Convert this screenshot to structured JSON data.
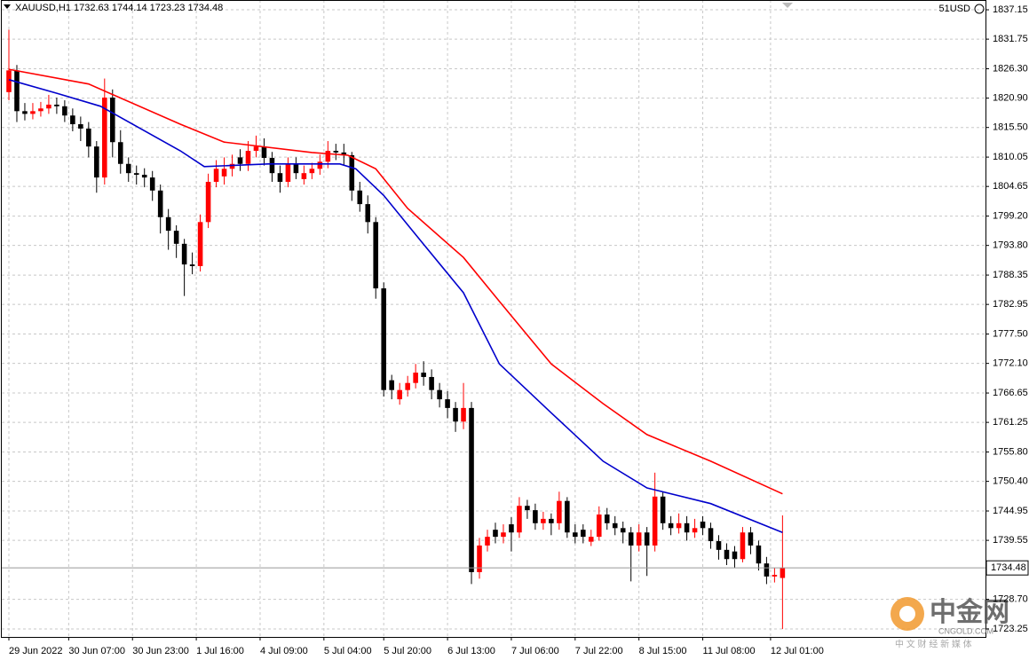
{
  "chart_data": {
    "type": "candlestick",
    "title": "XAUUSD,H1  1732.63 1744.14 1723.23 1734.48",
    "corner_label": "51USD",
    "x": [
      0,
      2,
      4,
      6,
      8,
      10,
      12,
      14,
      16,
      18,
      20,
      22,
      24,
      26,
      28,
      30,
      32,
      34,
      36,
      38,
      40,
      42,
      44,
      46,
      48,
      50,
      52,
      54,
      56,
      58,
      60,
      62,
      64,
      66,
      68,
      70,
      72,
      74,
      76,
      78,
      80,
      82,
      84,
      86,
      88,
      90,
      92,
      94,
      96,
      98,
      100,
      102,
      104,
      106,
      108,
      110,
      112,
      114,
      116,
      118,
      120,
      122,
      124,
      126,
      128,
      130,
      132,
      134,
      136,
      138,
      140,
      142,
      144,
      146,
      148,
      150,
      152,
      154,
      156,
      158,
      160,
      162,
      164,
      166,
      168,
      170,
      172,
      174,
      176,
      178,
      180,
      182,
      184,
      186,
      188,
      190,
      192,
      194
    ],
    "open": [
      1822,
      1826,
      1818.5,
      1818,
      1818.5,
      1819,
      1819.7,
      1819.4,
      1817.7,
      1816.1,
      1815.3,
      1812,
      1806.3,
      1821,
      1812.8,
      1808.8,
      1807.1,
      1806.8,
      1806.3,
      1803.9,
      1799,
      1796.5,
      1794.1,
      1790.3,
      1790,
      1798.1,
      1805.5,
      1806.5,
      1807.9,
      1810,
      1808.8,
      1811.2,
      1812,
      1809.9,
      1807.1,
      1805.5,
      1808.8,
      1806,
      1807.1,
      1807.9,
      1809.2,
      1811.2,
      1810.9,
      1810.4,
      1803.9,
      1801.4,
      1798.1,
      1785.9,
      1769,
      1765.5,
      1767.2,
      1768.5,
      1770.4,
      1769.6,
      1767.2,
      1765.5,
      1763.9,
      1761.4,
      1763.9,
      1733.7,
      1738.6,
      1741.5,
      1740.2,
      1742.5,
      1741.0,
      1745.9,
      1745.1,
      1742.7,
      1743.5,
      1742.7,
      1746.8,
      1741.0,
      1741.5,
      1739.3,
      1740.2,
      1744.3,
      1742.7,
      1741.8,
      1741.0,
      1738.6,
      1741.0,
      1738.6,
      1747.6,
      1742.7,
      1741.8,
      1742.7,
      1741.0,
      1743,
      1741.8,
      1739.4,
      1737.8,
      1737.5,
      1736.1,
      1741.0,
      1738.6,
      1735.3,
      1732.9,
      1732.63
    ],
    "high": [
      1833.5,
      1827,
      1820,
      1820,
      1820.2,
      1821.5,
      1821,
      1820.5,
      1819,
      1817.5,
      1816.5,
      1813,
      1824.5,
      1822.5,
      1815,
      1810,
      1808.5,
      1808,
      1807.5,
      1805,
      1800.5,
      1797.5,
      1795,
      1792.5,
      1799.5,
      1807,
      1809.5,
      1810,
      1810.5,
      1811.5,
      1813,
      1814,
      1813.5,
      1811,
      1808.5,
      1810,
      1810,
      1808.5,
      1809,
      1810.5,
      1813,
      1812.5,
      1812.5,
      1811,
      1805.5,
      1803,
      1799,
      1787,
      1770,
      1768.5,
      1769.8,
      1772,
      1772.5,
      1771,
      1768.5,
      1767,
      1765,
      1768.5,
      1765,
      1740,
      1741.5,
      1742.8,
      1742.5,
      1743.8,
      1747.5,
      1747,
      1746.3,
      1744.8,
      1744.5,
      1748.5,
      1747.5,
      1742.5,
      1742.5,
      1741.5,
      1745.8,
      1745.5,
      1744,
      1743,
      1742,
      1742.5,
      1742,
      1752,
      1748.5,
      1744,
      1744.5,
      1744,
      1743.5,
      1744,
      1742.8,
      1740.5,
      1739,
      1738.5,
      1742,
      1742,
      1739.5,
      1736.5,
      1734.5,
      1744.14
    ],
    "low": [
      1820.5,
      1816.5,
      1816.8,
      1817,
      1817.5,
      1818,
      1818,
      1816.5,
      1814.8,
      1813,
      1810,
      1803.5,
      1805,
      1810,
      1807,
      1805.5,
      1805,
      1804.5,
      1802,
      1796,
      1793,
      1791.5,
      1784.5,
      1788.5,
      1789,
      1797,
      1804.5,
      1805,
      1806.5,
      1807.5,
      1807.5,
      1810,
      1808.5,
      1805.5,
      1803.5,
      1804.5,
      1806,
      1805,
      1806,
      1806.8,
      1808,
      1809.5,
      1808.5,
      1802,
      1800,
      1796,
      1784,
      1766,
      1765.5,
      1764.5,
      1766,
      1767.5,
      1768,
      1765.5,
      1764,
      1762,
      1759.5,
      1760,
      1731.5,
      1732.5,
      1737.5,
      1739,
      1739,
      1737.5,
      1740,
      1743.5,
      1741.5,
      1741.5,
      1740.5,
      1741.5,
      1740,
      1739,
      1739,
      1738.5,
      1739.5,
      1741.5,
      1740.5,
      1739,
      1732,
      1737.5,
      1733,
      1737.5,
      1741.5,
      1740.5,
      1740.8,
      1739.5,
      1740,
      1740.5,
      1738,
      1736,
      1735,
      1734.5,
      1735.5,
      1737,
      1734,
      1731.5,
      1731.8,
      1723.23
    ],
    "close": [
      1826,
      1818.5,
      1818,
      1818.5,
      1819,
      1819.7,
      1819.4,
      1817.7,
      1816.1,
      1815.3,
      1812,
      1806.3,
      1821,
      1812.8,
      1808.8,
      1807.1,
      1806.8,
      1806.3,
      1803.9,
      1799,
      1796.5,
      1794.1,
      1790.3,
      1790,
      1798.1,
      1805.5,
      1807.9,
      1807.9,
      1808.8,
      1808.8,
      1811.2,
      1812,
      1809.9,
      1807.1,
      1805.5,
      1808.8,
      1807.1,
      1807.1,
      1807.9,
      1809.2,
      1811.2,
      1810.9,
      1810.4,
      1803.9,
      1801.4,
      1798.1,
      1785.9,
      1767.2,
      1767.2,
      1767.2,
      1768.5,
      1770.4,
      1769.6,
      1767.2,
      1765.5,
      1763.9,
      1761.4,
      1763.9,
      1733.7,
      1738.6,
      1740.2,
      1740.2,
      1741.0,
      1741.0,
      1745.9,
      1745.1,
      1742.7,
      1743.5,
      1742.7,
      1746.8,
      1741.0,
      1740.2,
      1740.2,
      1740.2,
      1744.3,
      1742.7,
      1741.8,
      1741.0,
      1738.6,
      1741.0,
      1738.6,
      1747.6,
      1742.7,
      1741.8,
      1742.7,
      1741.0,
      1741.8,
      1741.8,
      1739.4,
      1737.8,
      1736.1,
      1736.1,
      1741.0,
      1738.6,
      1735.3,
      1732.9,
      1733.2,
      1734.48
    ],
    "up_color": "#ff0000",
    "down_color": "#000000",
    "moving_averages": [
      {
        "color": "#ff0000",
        "x": [
          0,
          20,
          43,
          54,
          76,
          85,
          92,
          100,
          114,
          123,
          136,
          149,
          160,
          176,
          194
        ],
        "values": [
          1826.2,
          1823.5,
          1816.1,
          1812.8,
          1810.9,
          1810.4,
          1807.9,
          1800.6,
          1791.6,
          1783.5,
          1772.0,
          1764.7,
          1759.0,
          1754.1,
          1748.1
        ]
      },
      {
        "color": "#0000cc",
        "x": [
          0,
          12,
          23,
          43,
          49,
          65,
          83,
          87,
          94,
          103,
          114,
          123,
          136,
          149,
          160,
          176,
          194
        ],
        "values": [
          1824.3,
          1821.8,
          1819.4,
          1811.2,
          1808.3,
          1808.8,
          1808.8,
          1807.9,
          1803.0,
          1794.9,
          1785.1,
          1772.0,
          1763.0,
          1754.1,
          1749.2,
          1746.3,
          1741.0
        ]
      }
    ],
    "xlim": [
      -1.78,
      244.9
    ],
    "ylim": [
      1721.78,
      1838.95
    ],
    "xticks": [
      {
        "value": 0,
        "label": "29 Jun 2022"
      },
      {
        "value": 15,
        "label": "30 Jun 07:00"
      },
      {
        "value": 31,
        "label": "30 Jun 23:00"
      },
      {
        "value": 47,
        "label": "1 Jul 16:00"
      },
      {
        "value": 63,
        "label": "4 Jul 09:00"
      },
      {
        "value": 79,
        "label": "5 Jul 04:00"
      },
      {
        "value": 94,
        "label": "5 Jul 20:00"
      },
      {
        "value": 110,
        "label": "6 Jul 13:00"
      },
      {
        "value": 126,
        "label": "7 Jul 06:00"
      },
      {
        "value": 142,
        "label": "7 Jul 22:00"
      },
      {
        "value": 158,
        "label": "8 Jul 15:00"
      },
      {
        "value": 174,
        "label": "11 Jul 08:00"
      },
      {
        "value": 191,
        "label": "12 Jul 01:00"
      }
    ],
    "yticks": [
      1837.15,
      1831.75,
      {
        "value": 1826.3,
        "label": "1826.30"
      },
      {
        "value": 1820.9,
        "label": "1820.90"
      },
      {
        "value": 1815.5,
        "label": "1815.50"
      },
      1810.05,
      1804.65,
      {
        "value": 1799.2,
        "label": "1799.20"
      },
      {
        "value": 1793.8,
        "label": "1793.80"
      },
      1788.35,
      1782.95,
      {
        "value": 1777.5,
        "label": "1777.50"
      },
      {
        "value": 1772.1,
        "label": "1772.10"
      },
      1766.65,
      1761.25,
      {
        "value": 1755.8,
        "label": "1755.80"
      },
      {
        "value": 1750.4,
        "label": "1750.40"
      },
      1744.95,
      1739.55,
      {
        "value": 1728.7,
        "label": "1728.70"
      },
      1723.25
    ],
    "grid": true
  },
  "watermark": {
    "brand": "中金网",
    "site": "CNGOLD.COM",
    "slogan": "中 文 财 经 新 媒 体"
  }
}
